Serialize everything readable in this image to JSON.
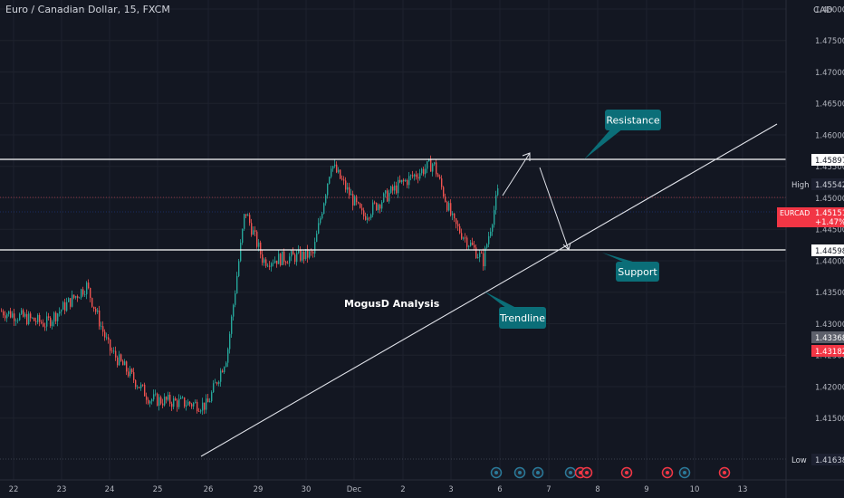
{
  "header": {
    "symbol_title": "Euro / Canadian Dollar, 15, FXCM"
  },
  "currency_badge": "CAD",
  "colors": {
    "background": "#131722",
    "grid": "#1e222d",
    "axis_text": "#b2b5be",
    "candle_up": "#26a69a",
    "candle_down": "#ef5350",
    "drawing_line": "#e1e3ea",
    "callout": "#0b6e78",
    "price_badge_red": "#f23645",
    "price_badge_gray": "#5d606b"
  },
  "price_axis": {
    "ticks": [
      "1.48000",
      "1.47500",
      "1.47000",
      "1.46500",
      "1.46000",
      "1.45500",
      "1.45000",
      "1.44500",
      "1.44000",
      "1.43500",
      "1.43000",
      "1.42500",
      "1.42000",
      "1.41500"
    ]
  },
  "time_axis": {
    "ticks": [
      "22",
      "23",
      "24",
      "25",
      "26",
      "29",
      "30",
      "Dec",
      "2",
      "3",
      "6",
      "7",
      "8",
      "9",
      "10",
      "13"
    ]
  },
  "price_labels": {
    "high_label": "High",
    "high_value": "1.45542",
    "low_label": "Low",
    "low_value": "1.41638",
    "resistance_value": "1.45897",
    "support_value": "1.44598",
    "symbol_label": "EURCAD",
    "last_price": "1.45151",
    "change": "+1.47%",
    "level_gray": "1.43368",
    "level_red": "1.43182"
  },
  "annotations": {
    "watermark": "MogusD Analysis",
    "resistance": "Resistance",
    "support": "Support",
    "trendline": "Trendline"
  },
  "chart_data": {
    "type": "candlestick",
    "symbol": "EURCAD",
    "timeframe": "15",
    "ylim": [
      1.415,
      1.481
    ],
    "approx_close_path": [
      {
        "day": "22",
        "price": 1.432
      },
      {
        "day": "23",
        "price": 1.43
      },
      {
        "day": "23",
        "price": 1.436
      },
      {
        "day": "24",
        "price": 1.426
      },
      {
        "day": "25",
        "price": 1.418
      },
      {
        "day": "26",
        "price": 1.417
      },
      {
        "day": "26",
        "price": 1.425
      },
      {
        "day": "29",
        "price": 1.448
      },
      {
        "day": "29",
        "price": 1.44
      },
      {
        "day": "30",
        "price": 1.441
      },
      {
        "day": "30",
        "price": 1.4555
      },
      {
        "day": "Dec",
        "price": 1.447
      },
      {
        "day": "2",
        "price": 1.452
      },
      {
        "day": "3",
        "price": 1.4555
      },
      {
        "day": "3",
        "price": 1.446
      },
      {
        "day": "3",
        "price": 1.44
      },
      {
        "day": "6",
        "price": 1.4515
      }
    ],
    "levels": {
      "resistance": 1.45897,
      "support": 1.44598,
      "high": 1.45542,
      "low": 1.41638,
      "last": 1.45151
    }
  },
  "events": {
    "icons": [
      "calendar-event-icon",
      "calendar-event-icon",
      "calendar-event-icon",
      "calendar-event-icon",
      "calendar-event-icon",
      "calendar-event-icon",
      "calendar-event-icon",
      "calendar-event-icon",
      "calendar-event-icon"
    ]
  }
}
